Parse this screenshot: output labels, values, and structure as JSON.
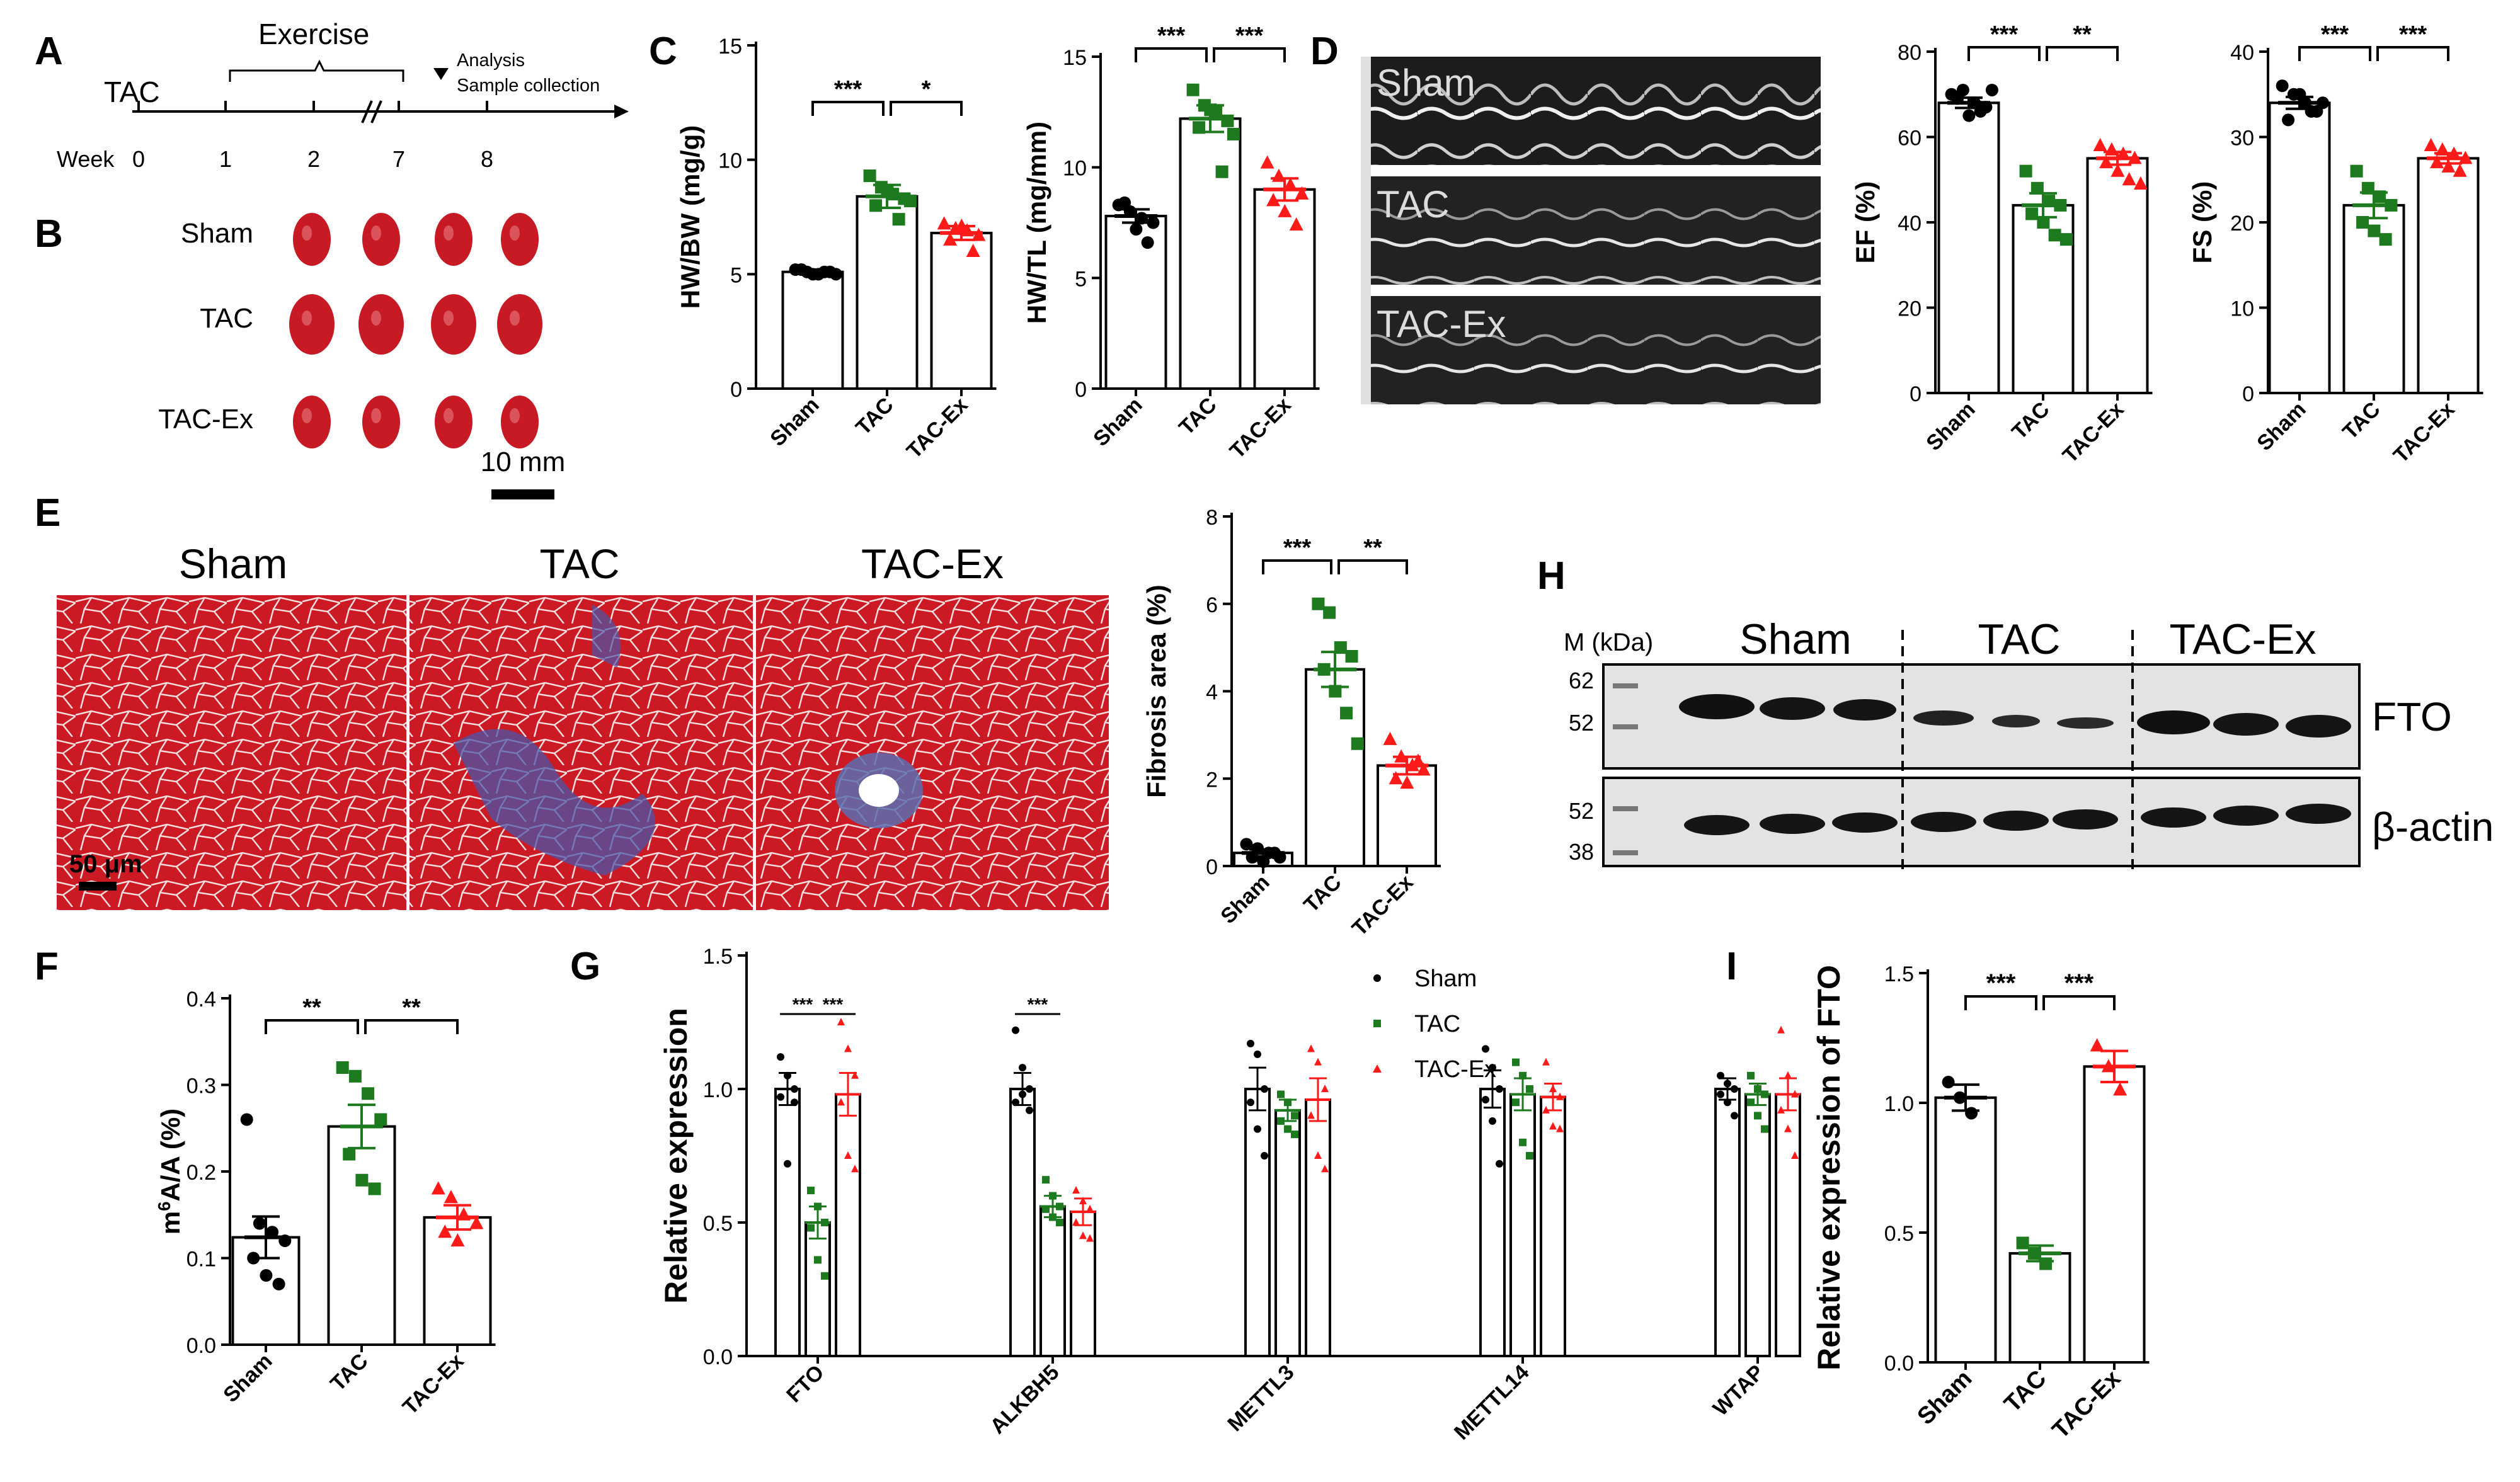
{
  "panel_letters": [
    "A",
    "B",
    "C",
    "D",
    "E",
    "F",
    "G",
    "H",
    "I"
  ],
  "colors": {
    "sham": "#000000",
    "tac": "#1e7a1e",
    "tacex": "#ff1a1a",
    "tissue": "#c81a24",
    "fibrosis": "#4a56a8"
  },
  "timeline": {
    "exercise_label": "Exercise",
    "tac_label": "TAC",
    "week_label": "Week",
    "weeks": [
      "0",
      "1",
      "2",
      "7",
      "8"
    ],
    "analysis_lines": [
      "Analysis",
      "Sample collection"
    ]
  },
  "hearts": {
    "groups": [
      "Sham",
      "TAC",
      "TAC-Ex"
    ],
    "scale_label": "10 mm"
  },
  "echo": {
    "labels": [
      "Sham",
      "TAC",
      "TAC-Ex"
    ]
  },
  "histology": {
    "titles": [
      "Sham",
      "TAC",
      "TAC-Ex"
    ],
    "scale_label": "50 μm"
  },
  "blot": {
    "marker_header": "M (kDa)",
    "groups": [
      "Sham",
      "TAC",
      "TAC-Ex"
    ],
    "top_markers": [
      "62",
      "52"
    ],
    "bottom_markers": [
      "52",
      "38"
    ],
    "top_protein": "FTO",
    "bottom_protein": "β-actin"
  },
  "chart_data": [
    {
      "id": "C1",
      "type": "bar",
      "ylabel": "HW/BW (mg/g)",
      "categories": [
        "Sham",
        "TAC",
        "TAC-Ex"
      ],
      "ylim": [
        0,
        15
      ],
      "yticks": [
        0,
        5,
        10,
        15
      ],
      "means": [
        5.1,
        8.4,
        6.8
      ],
      "sem": [
        0.1,
        0.5,
        0.3
      ],
      "points": [
        [
          5.2,
          5.1,
          5.0,
          5.1,
          5.2,
          5.0,
          5.1,
          5.0
        ],
        [
          9.3,
          8.8,
          8.5,
          8.3,
          8.0,
          8.6,
          7.4,
          8.2
        ],
        [
          7.2,
          7.0,
          6.9,
          6.7,
          6.5,
          7.1,
          6.0
        ]
      ],
      "significance": [
        {
          "from": 0,
          "to": 1,
          "label": "***"
        },
        {
          "from": 1,
          "to": 2,
          "label": "*"
        }
      ]
    },
    {
      "id": "C2",
      "type": "bar",
      "ylabel": "HW/TL (mg/mm)",
      "categories": [
        "Sham",
        "TAC",
        "TAC-Ex"
      ],
      "ylim": [
        0,
        15
      ],
      "yticks": [
        0,
        5,
        10,
        15
      ],
      "means": [
        7.8,
        12.2,
        9.0
      ],
      "sem": [
        0.3,
        0.6,
        0.5
      ],
      "points": [
        [
          8.3,
          8.0,
          7.7,
          7.5,
          8.4,
          7.2,
          6.6
        ],
        [
          13.5,
          12.8,
          12.5,
          12.1,
          11.8,
          12.6,
          9.8,
          11.5
        ],
        [
          10.2,
          9.6,
          9.2,
          8.8,
          8.5,
          8.0,
          7.4
        ]
      ],
      "significance": [
        {
          "from": 0,
          "to": 1,
          "label": "***"
        },
        {
          "from": 1,
          "to": 2,
          "label": "***"
        }
      ]
    },
    {
      "id": "D1",
      "type": "bar",
      "ylabel": "EF (%)",
      "categories": [
        "Sham",
        "TAC",
        "TAC-Ex"
      ],
      "ylim": [
        0,
        80
      ],
      "yticks": [
        0,
        20,
        40,
        60,
        80
      ],
      "means": [
        68,
        44,
        55
      ],
      "sem": [
        1.2,
        2.8,
        1.5
      ],
      "points": [
        [
          70,
          71,
          68,
          67,
          69,
          65,
          66,
          71
        ],
        [
          52,
          48,
          45,
          44,
          42,
          40,
          37,
          36
        ],
        [
          58,
          57,
          56,
          55,
          54,
          52,
          50,
          49
        ]
      ],
      "significance": [
        {
          "from": 0,
          "to": 1,
          "label": "***"
        },
        {
          "from": 1,
          "to": 2,
          "label": "**"
        }
      ]
    },
    {
      "id": "D2",
      "type": "bar",
      "ylabel": "FS (%)",
      "categories": [
        "Sham",
        "TAC",
        "TAC-Ex"
      ],
      "ylim": [
        0,
        40
      ],
      "yticks": [
        0,
        10,
        20,
        30,
        40
      ],
      "means": [
        34,
        22,
        27.5
      ],
      "sem": [
        0.7,
        1.5,
        0.6
      ],
      "points": [
        [
          36,
          35,
          34,
          33,
          32,
          35,
          33,
          34
        ],
        [
          26,
          24,
          23,
          22,
          20,
          19,
          18
        ],
        [
          29,
          28.5,
          28,
          27.5,
          27,
          26.5,
          26
        ]
      ],
      "significance": [
        {
          "from": 0,
          "to": 1,
          "label": "***"
        },
        {
          "from": 1,
          "to": 2,
          "label": "***"
        }
      ]
    },
    {
      "id": "E",
      "type": "bar",
      "ylabel": "Fibrosis area (%)",
      "categories": [
        "Sham",
        "TAC",
        "TAC-Ex"
      ],
      "ylim": [
        0,
        8
      ],
      "yticks": [
        0,
        2,
        4,
        6,
        8
      ],
      "means": [
        0.3,
        4.5,
        2.3
      ],
      "sem": [
        0.08,
        0.4,
        0.2
      ],
      "points": [
        [
          0.5,
          0.4,
          0.3,
          0.2,
          0.2,
          0.1,
          0.3
        ],
        [
          6.0,
          5.8,
          5.0,
          4.8,
          4.5,
          4.0,
          3.5,
          2.8
        ],
        [
          2.9,
          2.5,
          2.3,
          2.2,
          2.0,
          1.9,
          2.4
        ]
      ],
      "significance": [
        {
          "from": 0,
          "to": 1,
          "label": "***"
        },
        {
          "from": 1,
          "to": 2,
          "label": "**"
        }
      ]
    },
    {
      "id": "F",
      "type": "bar",
      "ylabel": "m6A/A (%)",
      "categories": [
        "Sham",
        "TAC",
        "TAC-Ex"
      ],
      "ylim": [
        0,
        0.4
      ],
      "yticks": [
        "0.0",
        "0.1",
        "0.2",
        "0.3",
        "0.4"
      ],
      "means": [
        0.124,
        0.252,
        0.147
      ],
      "sem": [
        0.024,
        0.025,
        0.014
      ],
      "points": [
        [
          0.26,
          0.14,
          0.13,
          0.12,
          0.1,
          0.08,
          0.07
        ],
        [
          0.32,
          0.31,
          0.29,
          0.26,
          0.22,
          0.19,
          0.18
        ],
        [
          0.18,
          0.17,
          0.15,
          0.14,
          0.13,
          0.12
        ]
      ],
      "significance": [
        {
          "from": 0,
          "to": 1,
          "label": "**"
        },
        {
          "from": 1,
          "to": 2,
          "label": "**"
        }
      ]
    },
    {
      "id": "G",
      "type": "bar",
      "ylabel": "Relative expression",
      "categories": [
        "FTO",
        "ALKBH5",
        "METTL3",
        "METTL14",
        "WTAP"
      ],
      "ylim": [
        0,
        1.5
      ],
      "yticks": [
        "0.0",
        "0.5",
        "1.0",
        "1.5"
      ],
      "legend": [
        "Sham",
        "TAC",
        "TAC-Ex"
      ],
      "series": [
        {
          "name": "Sham",
          "means": [
            1.0,
            1.0,
            1.0,
            1.0,
            1.0
          ],
          "sem": [
            0.06,
            0.06,
            0.08,
            0.07,
            0.04
          ],
          "points": [
            [
              1.12,
              1.05,
              1.0,
              0.97,
              0.72,
              0.95
            ],
            [
              1.22,
              1.08,
              1.0,
              0.95,
              0.98,
              0.92
            ],
            [
              1.17,
              1.13,
              1.0,
              0.95,
              0.85,
              0.75
            ],
            [
              1.15,
              1.08,
              1.0,
              0.96,
              0.88,
              0.72
            ],
            [
              1.05,
              1.02,
              1.0,
              0.98,
              0.95,
              0.9
            ]
          ]
        },
        {
          "name": "TAC",
          "means": [
            0.5,
            0.56,
            0.92,
            0.98,
            0.98
          ],
          "sem": [
            0.06,
            0.04,
            0.04,
            0.06,
            0.04
          ],
          "points": [
            [
              0.62,
              0.56,
              0.5,
              0.48,
              0.36,
              0.3
            ],
            [
              0.66,
              0.6,
              0.56,
              0.55,
              0.52,
              0.5
            ],
            [
              0.98,
              0.95,
              0.9,
              0.88,
              0.85,
              0.83
            ],
            [
              1.1,
              1.05,
              1.0,
              0.95,
              0.8,
              0.75
            ],
            [
              1.05,
              1.0,
              0.98,
              0.95,
              0.9,
              0.85
            ]
          ]
        },
        {
          "name": "TAC-Ex",
          "means": [
            0.98,
            0.54,
            0.96,
            0.97,
            0.98
          ],
          "sem": [
            0.08,
            0.05,
            0.08,
            0.05,
            0.06
          ],
          "points": [
            [
              1.25,
              1.15,
              1.05,
              0.95,
              0.75,
              0.7
            ],
            [
              0.62,
              0.58,
              0.55,
              0.5,
              0.45,
              0.44
            ],
            [
              1.15,
              1.1,
              1.0,
              0.9,
              0.75,
              0.7
            ],
            [
              1.1,
              1.0,
              0.97,
              0.92,
              0.86,
              0.85
            ],
            [
              1.22,
              1.05,
              0.98,
              0.92,
              0.85,
              0.75
            ]
          ]
        }
      ],
      "significance": [
        {
          "category": 0,
          "from": 0,
          "to": 1,
          "label": "***"
        },
        {
          "category": 0,
          "from": 1,
          "to": 2,
          "label": "***"
        },
        {
          "category": 1,
          "from": 0,
          "to": 1,
          "label": "***"
        }
      ]
    },
    {
      "id": "I",
      "type": "bar",
      "ylabel": "Relative expression of FTO",
      "categories": [
        "Sham",
        "TAC",
        "TAC-Ex"
      ],
      "ylim": [
        0,
        1.5
      ],
      "yticks": [
        "0.0",
        "0.5",
        "1.0",
        "1.5"
      ],
      "means": [
        1.02,
        0.42,
        1.14
      ],
      "sem": [
        0.05,
        0.03,
        0.06
      ],
      "points": [
        [
          1.08,
          1.02,
          0.96
        ],
        [
          0.46,
          0.42,
          0.38
        ],
        [
          1.22,
          1.14,
          1.05
        ]
      ],
      "significance": [
        {
          "from": 0,
          "to": 1,
          "label": "***"
        },
        {
          "from": 1,
          "to": 2,
          "label": "***"
        }
      ]
    }
  ]
}
